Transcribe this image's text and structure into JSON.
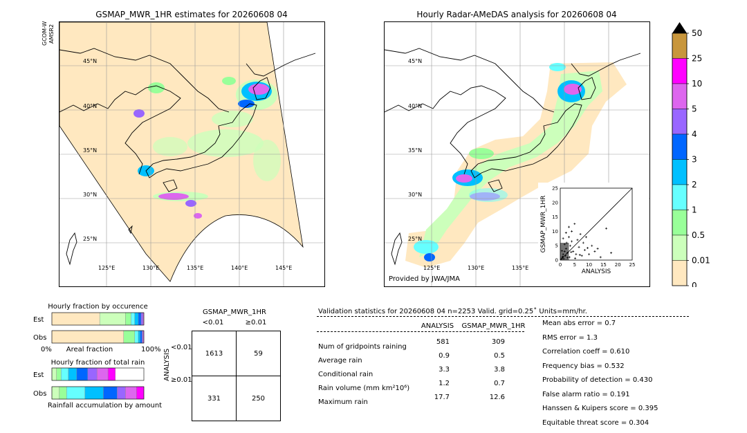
{
  "left_map": {
    "title": "GSMAP_MWR_1HR estimates for 20260608 04",
    "side_label_1": "GCOM-W",
    "side_label_2": "AMSR2",
    "lat_labels": [
      "45°N",
      "40°N",
      "35°N",
      "30°N",
      "25°N"
    ],
    "lon_labels": [
      "125°E",
      "130°E",
      "135°E",
      "140°E",
      "145°E"
    ]
  },
  "right_map": {
    "title": "Hourly Radar-AMeDAS analysis for 20260608 04",
    "lat_labels": [
      "45°N",
      "40°N",
      "35°N",
      "30°N",
      "25°N"
    ],
    "lon_labels": [
      "125°E",
      "130°E",
      "135°E"
    ],
    "credit": "Provided by JWA/JMA"
  },
  "colorbar": {
    "labels": [
      "50",
      "25",
      "10",
      "5",
      "4",
      "3",
      "2",
      "1",
      "0.5",
      "0.01",
      "0"
    ],
    "colors": [
      "#c8963c",
      "#ff00ff",
      "#dd66ee",
      "#9966ff",
      "#0066ff",
      "#00c0ff",
      "#66ffff",
      "#99ff99",
      "#ccffbb",
      "#ffe8c0"
    ]
  },
  "chart_data": [
    {
      "type": "scatter",
      "xlabel": "ANALYSIS",
      "ylabel": "GSMAP_MWR_1HR",
      "xlim": [
        0,
        25
      ],
      "ylim": [
        0,
        25
      ],
      "ticks": [
        "0",
        "5",
        "10",
        "15",
        "20",
        "25"
      ],
      "x": [
        0.5,
        0.8,
        1.0,
        1.2,
        1.5,
        1.8,
        2.0,
        2.2,
        2.5,
        3.0,
        3.2,
        3.5,
        4.0,
        4.5,
        5.0,
        5.5,
        6.0,
        6.5,
        7.0,
        7.5,
        8.0,
        8.5,
        9.0,
        10.0,
        11.0,
        12.0,
        13.0,
        14.0,
        16.0,
        17.7,
        1.0,
        2.0,
        3.0,
        4.0,
        2.5,
        1.5,
        0.6,
        0.9,
        5.2,
        6.8,
        9.5,
        3.8
      ],
      "y": [
        0.5,
        1.0,
        2.0,
        0.5,
        3.0,
        1.5,
        4.0,
        6.0,
        2.5,
        8.0,
        1.0,
        5.0,
        10.0,
        3.0,
        12.6,
        2.0,
        7.0,
        4.5,
        9.0,
        1.5,
        6.0,
        3.5,
        8.0,
        2.0,
        5.0,
        3.0,
        4.0,
        1.0,
        11.0,
        2.5,
        7.5,
        9.5,
        11.5,
        6.5,
        0.8,
        5.5,
        3.2,
        1.2,
        0.6,
        1.8,
        4.2,
        2.8
      ]
    },
    {
      "type": "bar",
      "title": "Hourly fraction by occurence",
      "categories": [
        "Est",
        "Obs"
      ],
      "xlabel": "Areal fraction",
      "ticks": [
        "0%",
        "100%"
      ],
      "series": [
        {
          "values": [
            0.52,
            0.78
          ]
        },
        {
          "values": [
            0.28,
            0.0
          ]
        },
        {
          "values": [
            0.06,
            0.12
          ]
        },
        {
          "values": [
            0.04,
            0.04
          ]
        },
        {
          "values": [
            0.04,
            0.02
          ]
        },
        {
          "values": [
            0.03,
            0.02
          ]
        },
        {
          "values": [
            0.02,
            0.01
          ]
        },
        {
          "values": [
            0.01,
            0.01
          ]
        }
      ],
      "colors": [
        "#ffe8c0",
        "#ccffbb",
        "#99ff99",
        "#66ffff",
        "#00c0ff",
        "#0066ff",
        "#9966ff",
        "#dd66ee"
      ]
    },
    {
      "type": "bar",
      "title": "Hourly fraction of total rain",
      "categories": [
        "Est",
        "Obs"
      ],
      "xlabel": "Rainfall accumulation by amount",
      "series": [
        {
          "values": [
            0.05,
            0.08
          ]
        },
        {
          "values": [
            0.05,
            0.08
          ]
        },
        {
          "values": [
            0.08,
            0.2
          ]
        },
        {
          "values": [
            0.09,
            0.2
          ]
        },
        {
          "values": [
            0.12,
            0.15
          ]
        },
        {
          "values": [
            0.1,
            0.09
          ]
        },
        {
          "values": [
            0.12,
            0.12
          ]
        },
        {
          "values": [
            0.08,
            0.08
          ]
        }
      ],
      "colors": [
        "#ccffbb",
        "#99ff99",
        "#66ffff",
        "#00c0ff",
        "#0066ff",
        "#9966ff",
        "#dd66ee",
        "#ff00ff"
      ]
    }
  ],
  "contingency": {
    "col_title": "GSMAP_MWR_1HR",
    "col_headers": [
      "<0.01",
      "≥0.01"
    ],
    "row_title": "ANALYSIS",
    "row_headers": [
      "<0.01",
      "≥0.01"
    ],
    "cells": [
      [
        "1613",
        "59"
      ],
      [
        "331",
        "250"
      ]
    ]
  },
  "validation": {
    "header": "Validation statistics for 20260608 04  n=2253 Valid. grid=0.25˚ Units=mm/hr.",
    "col_analysis": "ANALYSIS",
    "col_gsmap": "GSMAP_MWR_1HR",
    "rows": [
      {
        "label": "Num of gridpoints raining",
        "a": "581",
        "g": "309"
      },
      {
        "label": "Average rain",
        "a": "0.9",
        "g": "0.5"
      },
      {
        "label": "Conditional rain",
        "a": "3.3",
        "g": "3.8"
      },
      {
        "label": "Rain volume (mm km²10⁶)",
        "a": "1.2",
        "g": "0.7"
      },
      {
        "label": "Maximum rain",
        "a": "17.7",
        "g": "12.6"
      }
    ],
    "scores": [
      "Mean abs error =    0.7",
      "RMS error =    1.3",
      "Correlation coeff =  0.610",
      "Frequency bias =  0.532",
      "Probability of detection =  0.430",
      "False alarm ratio =  0.191",
      "Hanssen & Kuipers score =  0.395",
      "Equitable threat score =  0.304"
    ]
  }
}
